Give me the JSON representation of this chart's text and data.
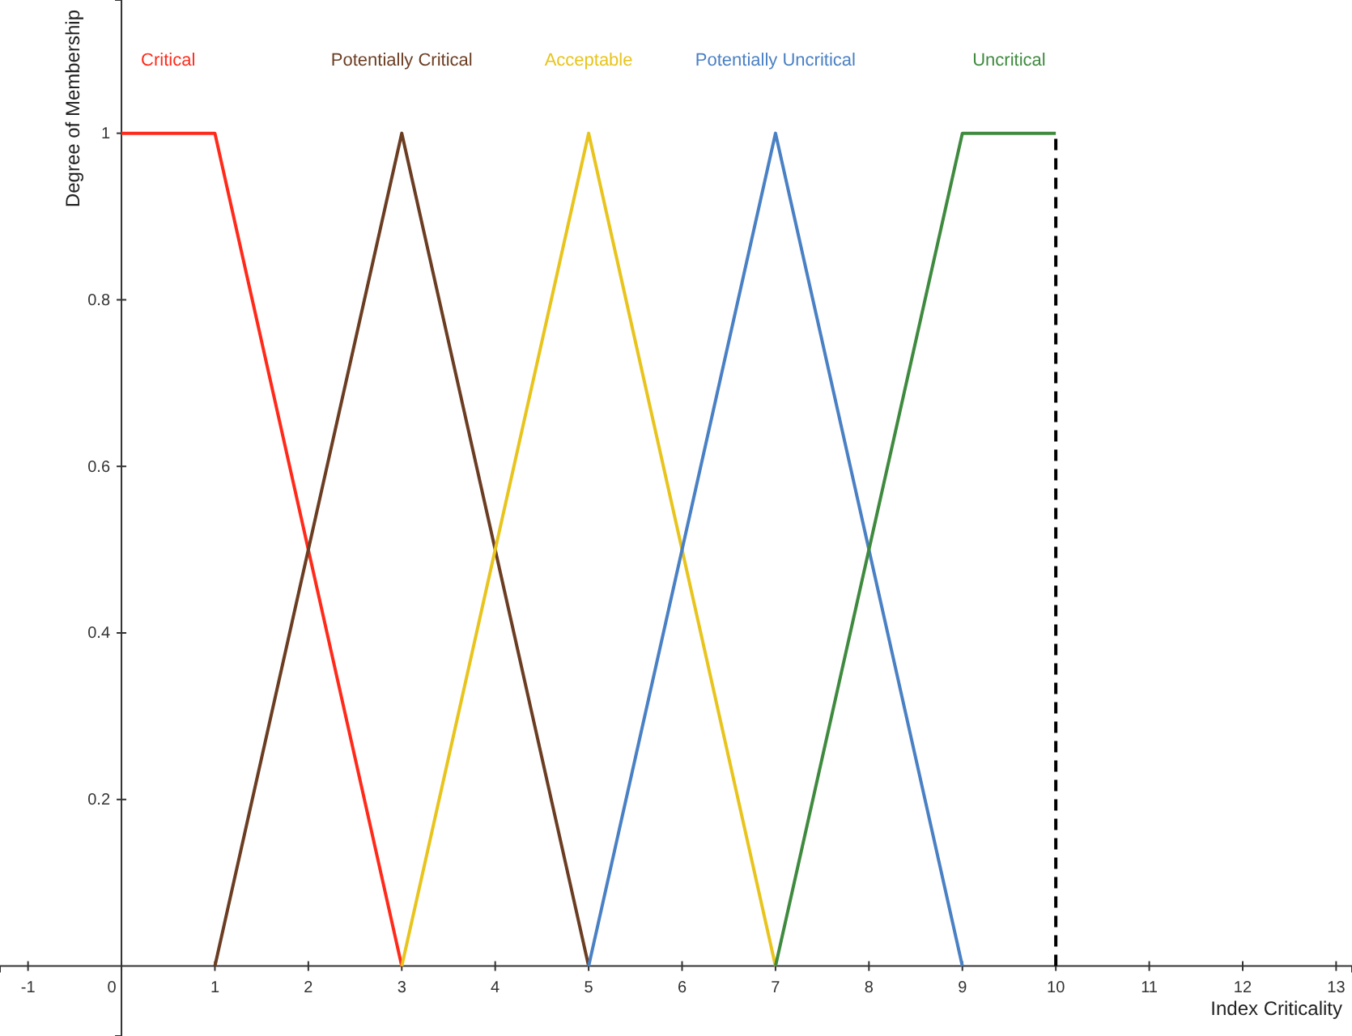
{
  "chart_data": {
    "type": "line",
    "xlabel": "Index Criticality",
    "ylabel": "Degree of Membership",
    "xlim": [
      -1.3,
      13.17
    ],
    "ylim": [
      -0.084,
      1.16
    ],
    "xticks": [
      -1,
      0,
      1,
      2,
      3,
      4,
      5,
      6,
      7,
      8,
      9,
      10,
      11,
      12,
      13
    ],
    "yticks": [
      0.2,
      0.4,
      0.6,
      0.8,
      1
    ],
    "grid": false,
    "legend": false,
    "marker": "none",
    "series": [
      {
        "name": "Critical",
        "color": "#ff2a1a",
        "x": [
          0,
          1,
          3
        ],
        "values": [
          1,
          1,
          0
        ]
      },
      {
        "name": "Potentially Critical",
        "color": "#6b3d22",
        "x": [
          1,
          3,
          5
        ],
        "values": [
          0,
          1,
          0
        ]
      },
      {
        "name": "Acceptable",
        "color": "#e8c41c",
        "x": [
          3,
          5,
          7
        ],
        "values": [
          0,
          1,
          0
        ]
      },
      {
        "name": "Potentially Uncritical",
        "color": "#4a80c4",
        "x": [
          5,
          7,
          9
        ],
        "values": [
          0,
          1,
          0
        ]
      },
      {
        "name": "Uncritical",
        "color": "#3f8a3f",
        "x": [
          7,
          9,
          10
        ],
        "values": [
          0,
          1,
          1
        ]
      }
    ],
    "ref_lines": [
      {
        "axis": "x",
        "value": 10,
        "color": "#000000",
        "line_style": "dashed"
      }
    ]
  }
}
